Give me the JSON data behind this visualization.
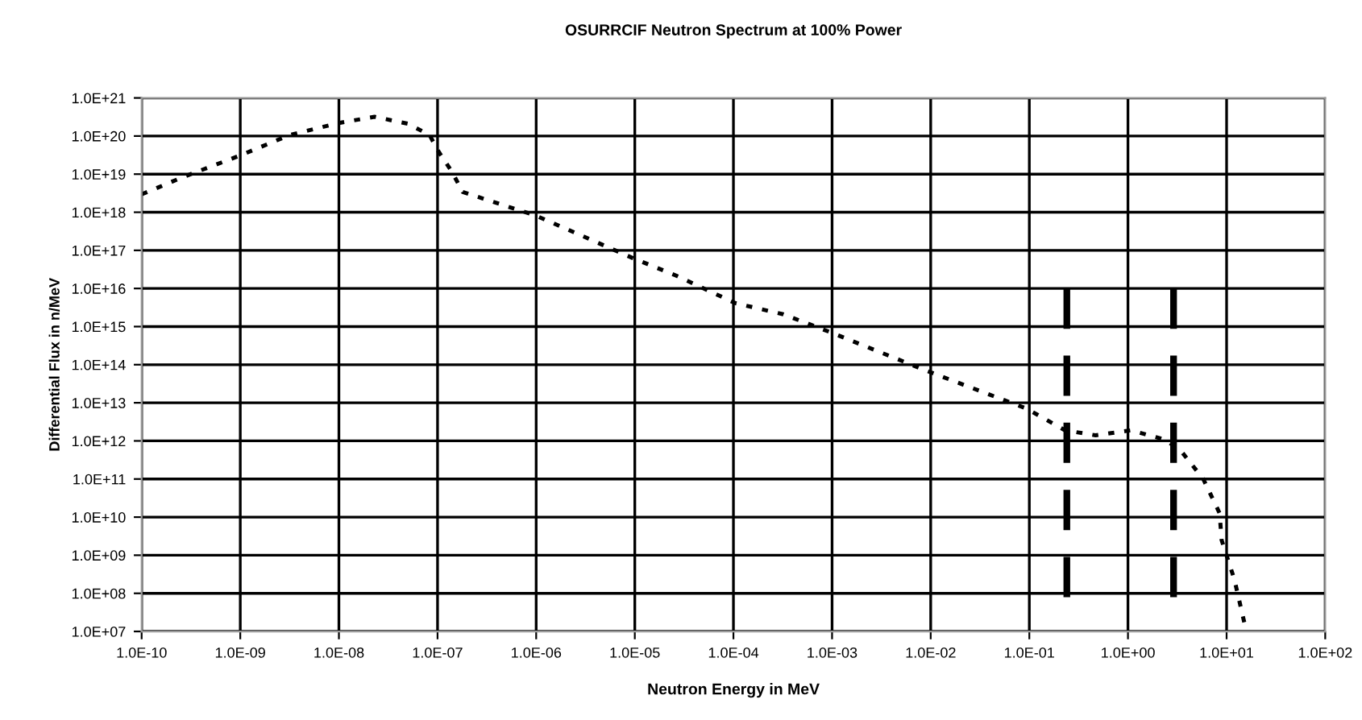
{
  "chart_data": {
    "type": "line",
    "title": "OSURRCIF Neutron Spectrum at 100% Power",
    "xlabel": "Neutron Energy in MeV",
    "ylabel": "Differential Flux in n/MeV",
    "log": "xy",
    "grid": true,
    "xlim": [
      1e-10,
      100
    ],
    "ylim": [
      10000000.0,
      1e+21
    ],
    "xticks": [
      {
        "value": 1e-10,
        "label": "1.0E-10"
      },
      {
        "value": 1e-09,
        "label": "1.0E-09"
      },
      {
        "value": 1e-08,
        "label": "1.0E-08"
      },
      {
        "value": 1e-07,
        "label": "1.0E-07"
      },
      {
        "value": 1e-06,
        "label": "1.0E-06"
      },
      {
        "value": 1e-05,
        "label": "1.0E-05"
      },
      {
        "value": 0.0001,
        "label": "1.0E-04"
      },
      {
        "value": 0.001,
        "label": "1.0E-03"
      },
      {
        "value": 0.01,
        "label": "1.0E-02"
      },
      {
        "value": 0.1,
        "label": "1.0E-01"
      },
      {
        "value": 1,
        "label": "1.0E+00"
      },
      {
        "value": 10,
        "label": "1.0E+01"
      },
      {
        "value": 100,
        "label": "1.0E+02"
      }
    ],
    "yticks": [
      {
        "value": 10000000.0,
        "label": "1.0E+07"
      },
      {
        "value": 100000000.0,
        "label": "1.0E+08"
      },
      {
        "value": 1000000000.0,
        "label": "1.0E+09"
      },
      {
        "value": 10000000000.0,
        "label": "1.0E+10"
      },
      {
        "value": 100000000000.0,
        "label": "1.0E+11"
      },
      {
        "value": 1000000000000.0,
        "label": "1.0E+12"
      },
      {
        "value": 10000000000000.0,
        "label": "1.0E+13"
      },
      {
        "value": 100000000000000.0,
        "label": "1.0E+14"
      },
      {
        "value": 1000000000000000.0,
        "label": "1.0E+15"
      },
      {
        "value": 1e+16,
        "label": "1.0E+16"
      },
      {
        "value": 1e+17,
        "label": "1.0E+17"
      },
      {
        "value": 1e+18,
        "label": "1.0E+18"
      },
      {
        "value": 1e+19,
        "label": "1.0E+19"
      },
      {
        "value": 1e+20,
        "label": "1.0E+20"
      },
      {
        "value": 1e+21,
        "label": "1.0E+21"
      }
    ],
    "series": [
      {
        "color": "#000000",
        "line_style": "dotted",
        "x": [
          1e-10,
          2.6e-10,
          1e-09,
          3.2e-09,
          1e-08,
          2.3e-08,
          5e-08,
          8.3e-08,
          1e-07,
          1.4e-07,
          1.8e-07,
          1e-06,
          9.5e-06,
          2.6e-05,
          0.000105,
          0.00032,
          0.00095,
          0.0091,
          0.093,
          0.23,
          0.47,
          1.07,
          2.4,
          3.5,
          5.8,
          8.5,
          8.9,
          12,
          15.5
        ],
        "values": [
          2.95e+18,
          8.3e+18,
          3.1e+19,
          1.07e+20,
          2.2e+20,
          3.2e+20,
          2.1e+20,
          1.07e+20,
          4.3e+19,
          1.15e+19,
          3.4e+18,
          8.1e+17,
          6.3e+16,
          2.2e+16,
          4100000000000000.0,
          2100000000000000.0,
          720000000000000.0,
          69000000000000.0,
          7100000000000.0,
          1900000000000.0,
          1400000000000.0,
          1900000000000.0,
          1070000000000.0,
          520000000000.0,
          100000000000.0,
          12600000000.0,
          2500000000.0,
          230000000.0,
          13000000.0
        ]
      },
      {
        "color": "#000000",
        "line_style": "dashed",
        "x": [
          0.24,
          0.24
        ],
        "values": [
          1e+16,
          60000000.0
        ]
      },
      {
        "color": "#000000",
        "line_style": "dashed",
        "x": [
          2.9,
          2.9
        ],
        "values": [
          1e+16,
          60000000.0
        ]
      }
    ]
  }
}
